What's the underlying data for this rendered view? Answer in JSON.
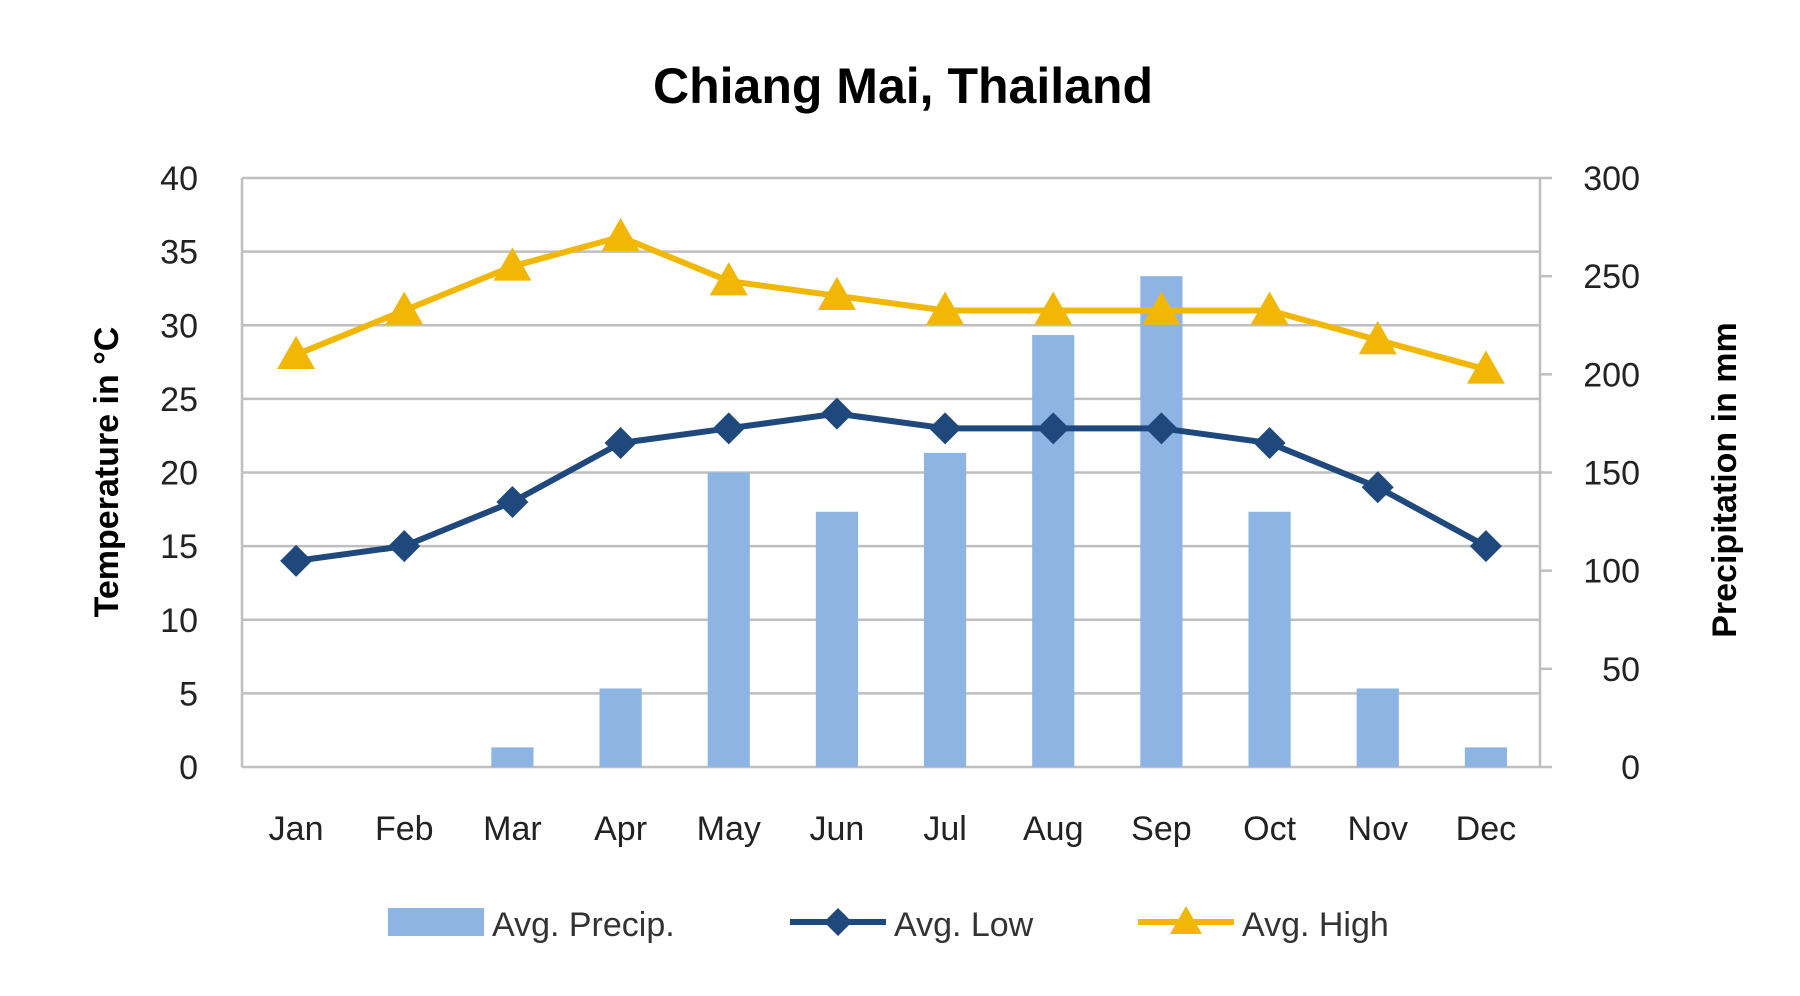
{
  "chart_data": {
    "type": "bar",
    "title": "Chiang Mai, Thailand",
    "categories": [
      "Jan",
      "Feb",
      "Mar",
      "Apr",
      "May",
      "Jun",
      "Jul",
      "Aug",
      "Sep",
      "Oct",
      "Nov",
      "Dec"
    ],
    "y_left": {
      "label": "Temperature in °C",
      "range": [
        0,
        40
      ],
      "ticks": [
        "0",
        "5",
        "10",
        "15",
        "20",
        "25",
        "30",
        "35",
        "40"
      ]
    },
    "y_right": {
      "label": "Precipitation in mm",
      "range": [
        0,
        300
      ],
      "ticks": [
        "0",
        "50",
        "100",
        "150",
        "200",
        "250",
        "300"
      ]
    },
    "grid": true,
    "legend_position": "bottom",
    "series": [
      {
        "name": "Avg. Precip.",
        "kind": "bar",
        "axis": "right",
        "color": "#8EB4E3",
        "values": [
          0,
          0,
          10,
          40,
          150,
          130,
          160,
          220,
          250,
          130,
          40,
          10
        ]
      },
      {
        "name": "Avg. Low",
        "kind": "line",
        "marker": "diamond",
        "axis": "left",
        "color": "#1F497D",
        "values": [
          14,
          15,
          18,
          22,
          23,
          24,
          23,
          23,
          23,
          22,
          19,
          15
        ]
      },
      {
        "name": "Avg. High",
        "kind": "line",
        "marker": "triangle",
        "axis": "left",
        "color": "#F2B705",
        "values": [
          28,
          31,
          34,
          36,
          33,
          32,
          31,
          31,
          31,
          31,
          29,
          27
        ]
      }
    ]
  }
}
